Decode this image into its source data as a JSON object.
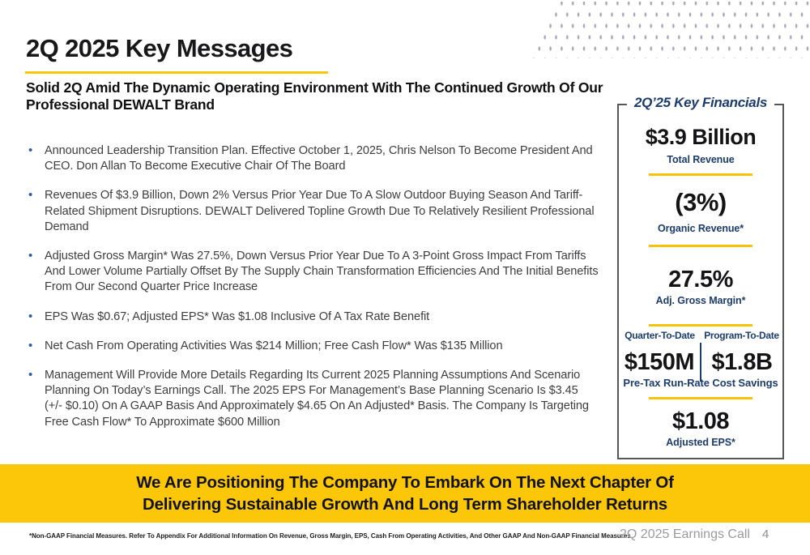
{
  "slide": {
    "title": "2Q 2025 Key Messages",
    "subtitle": "Solid 2Q Amid The Dynamic Operating Environment With The Continued Growth Of Our Professional DEWALT Brand",
    "bullets": [
      "Announced Leadership Transition Plan. Effective October 1, 2025, Chris Nelson To Become President And CEO. Don Allan To Become Executive Chair Of The Board",
      "Revenues Of $3.9 Billion, Down 2% Versus Prior Year Due To A Slow Outdoor Buying Season And Tariff-Related Shipment Disruptions. DEWALT Delivered Topline Growth Due To Relatively Resilient Professional Demand",
      "Adjusted Gross Margin* Was 27.5%, Down Versus Prior Year Due To A 3-Point Gross Impact From Tariffs And Lower Volume Partially Offset By The Supply Chain Transformation Efficiencies And The Initial Benefits From Our Second Quarter Price Increase",
      "EPS Was $0.67; Adjusted EPS* Was $1.08 Inclusive Of A Tax Rate Benefit",
      "Net Cash From Operating Activities Was $214 Million; Free Cash Flow* Was $135 Million",
      "Management Will Provide More Details Regarding Its Current 2025 Planning Assumptions And Scenario Planning On Today’s Earnings Call.  The 2025 EPS For Management’s Base Planning Scenario Is $3.45 (+/- $0.10) On A GAAP Basis And Approximately $4.65 On An Adjusted* Basis. The Company Is Targeting Free Cash Flow* To Approximate $600 Million"
    ],
    "banner": "We Are Positioning The Company To Embark On The Next Chapter Of Delivering Sustainable Growth And Long Term Shareholder Returns",
    "footnote": "*Non-GAAP Financial Measures. Refer To Appendix For Additional Information On Revenue, Gross Margin, EPS, Cash From Operating Activities, And Other GAAP And Non-GAAP Financial Measures",
    "footer_label": "2Q 2025 Earnings Call",
    "page_number": "4"
  },
  "key_financials": {
    "title": "2Q’25 Key Financials",
    "total_revenue": {
      "value": "$3.9 Billion",
      "label": "Total Revenue"
    },
    "organic_revenue": {
      "value": "(3%)",
      "label": "Organic Revenue*"
    },
    "gross_margin": {
      "value": "27.5%",
      "label": "Adj. Gross Margin*"
    },
    "cost_savings": {
      "left_label": "Quarter-To-Date",
      "left_value": "$150M",
      "right_label": "Program-To-Date",
      "right_value": "$1.8B",
      "label": "Pre-Tax Run-Rate Cost Savings"
    },
    "adjusted_eps": {
      "value": "$1.08",
      "label": "Adjusted EPS*"
    }
  },
  "colors": {
    "brand_yellow": "#FCC708",
    "navy": "#1C3C6E",
    "bullet_blue": "#2D5DA6",
    "body_text": "#3E3E40",
    "panel_border": "#56575B",
    "footer_gray": "#9B9B9B"
  }
}
